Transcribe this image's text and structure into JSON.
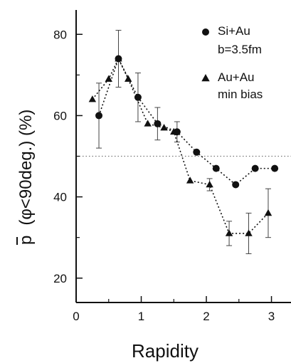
{
  "chart_data": {
    "type": "scatter",
    "xlabel": "Rapidity",
    "ylabel": "p̄ (φ<90deg.) (%)",
    "ylabel_bar_char": "p",
    "ylabel_rest": "(φ<90deg.) (%)",
    "xlim": [
      0,
      3.3
    ],
    "ylim": [
      14,
      86
    ],
    "xticks": [
      0,
      1,
      2,
      3
    ],
    "xtick_labels": [
      "0",
      "1",
      "2",
      "3"
    ],
    "yticks": [
      20,
      40,
      60,
      80
    ],
    "ytick_labels": [
      "20",
      "40",
      "60",
      "80"
    ],
    "reference_line": 50,
    "grid": false,
    "legend_position": "top-right",
    "series": [
      {
        "name": "Si+Au b=3.5fm",
        "legend_lines": [
          "Si+Au",
          "b=3.5fm"
        ],
        "marker": "circle",
        "x": [
          0.35,
          0.65,
          0.95,
          1.25,
          1.55,
          1.85,
          2.15,
          2.45,
          2.75,
          3.05
        ],
        "y": [
          60,
          74,
          64.5,
          58,
          56,
          51,
          47,
          43,
          47,
          47
        ],
        "err": [
          8,
          7,
          6,
          4,
          2.5,
          0,
          0,
          0,
          0,
          0
        ]
      },
      {
        "name": "Au+Au min bias",
        "legend_lines": [
          "Au+Au",
          "min bias"
        ],
        "marker": "triangle",
        "x": [
          0.25,
          0.5,
          0.65,
          0.8,
          1.1,
          1.35,
          1.5,
          1.75,
          2.05,
          2.35,
          2.65,
          2.95
        ],
        "y": [
          64,
          69,
          74,
          69,
          58,
          57,
          56,
          44,
          43,
          31,
          31,
          36
        ],
        "err": [
          0,
          0,
          0,
          0,
          0,
          0,
          0,
          0,
          1.5,
          3,
          5,
          6
        ]
      }
    ]
  }
}
